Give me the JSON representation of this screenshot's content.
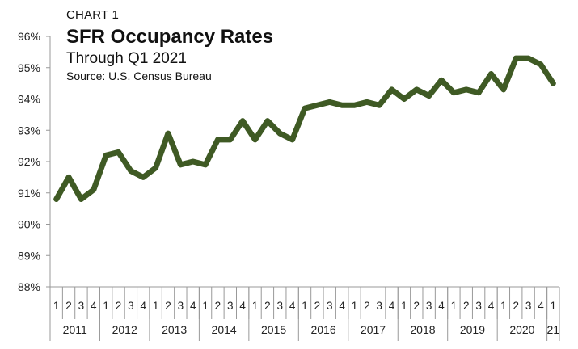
{
  "header": {
    "chart_number": "CHART 1",
    "title": "SFR Occupancy Rates",
    "subtitle": "Through Q1 2021",
    "source": "Source: U.S. Census Bureau"
  },
  "chart_data": {
    "type": "line",
    "title": "SFR Occupancy Rates",
    "subtitle": "Through Q1 2021",
    "xlabel": "",
    "ylabel": "",
    "ylim": [
      88,
      96
    ],
    "y_ticks": [
      88,
      89,
      90,
      91,
      92,
      93,
      94,
      95,
      96
    ],
    "y_tick_labels": [
      "88%",
      "89%",
      "90%",
      "91%",
      "92%",
      "93%",
      "94%",
      "95%",
      "96%"
    ],
    "grid": false,
    "legend": "none",
    "line_color": "#3f5a24",
    "quarters": [
      "1",
      "2",
      "3",
      "4",
      "1",
      "2",
      "3",
      "4",
      "1",
      "2",
      "3",
      "4",
      "1",
      "2",
      "3",
      "4",
      "1",
      "2",
      "3",
      "4",
      "1",
      "2",
      "3",
      "4",
      "1",
      "2",
      "3",
      "4",
      "1",
      "2",
      "3",
      "4",
      "1",
      "2",
      "3",
      "4",
      "1",
      "2",
      "3",
      "4",
      "1"
    ],
    "years": [
      {
        "label": "2011",
        "count": 4
      },
      {
        "label": "2012",
        "count": 4
      },
      {
        "label": "2013",
        "count": 4
      },
      {
        "label": "2014",
        "count": 4
      },
      {
        "label": "2015",
        "count": 4
      },
      {
        "label": "2016",
        "count": 4
      },
      {
        "label": "2017",
        "count": 4
      },
      {
        "label": "2018",
        "count": 4
      },
      {
        "label": "2019",
        "count": 4
      },
      {
        "label": "2020",
        "count": 4
      },
      {
        "label": "21",
        "count": 1
      }
    ],
    "series": [
      {
        "values": [
          90.8,
          91.5,
          90.8,
          91.1,
          92.2,
          92.3,
          91.7,
          91.5,
          91.8,
          92.9,
          91.9,
          92.0,
          91.9,
          92.7,
          92.7,
          93.3,
          92.7,
          93.3,
          92.9,
          92.7,
          93.7,
          93.8,
          93.9,
          93.8,
          93.8,
          93.9,
          93.8,
          94.3,
          94.0,
          94.3,
          94.1,
          94.6,
          94.2,
          94.3,
          94.2,
          94.8,
          94.3,
          95.3,
          95.3,
          95.1,
          94.5
        ]
      }
    ]
  }
}
